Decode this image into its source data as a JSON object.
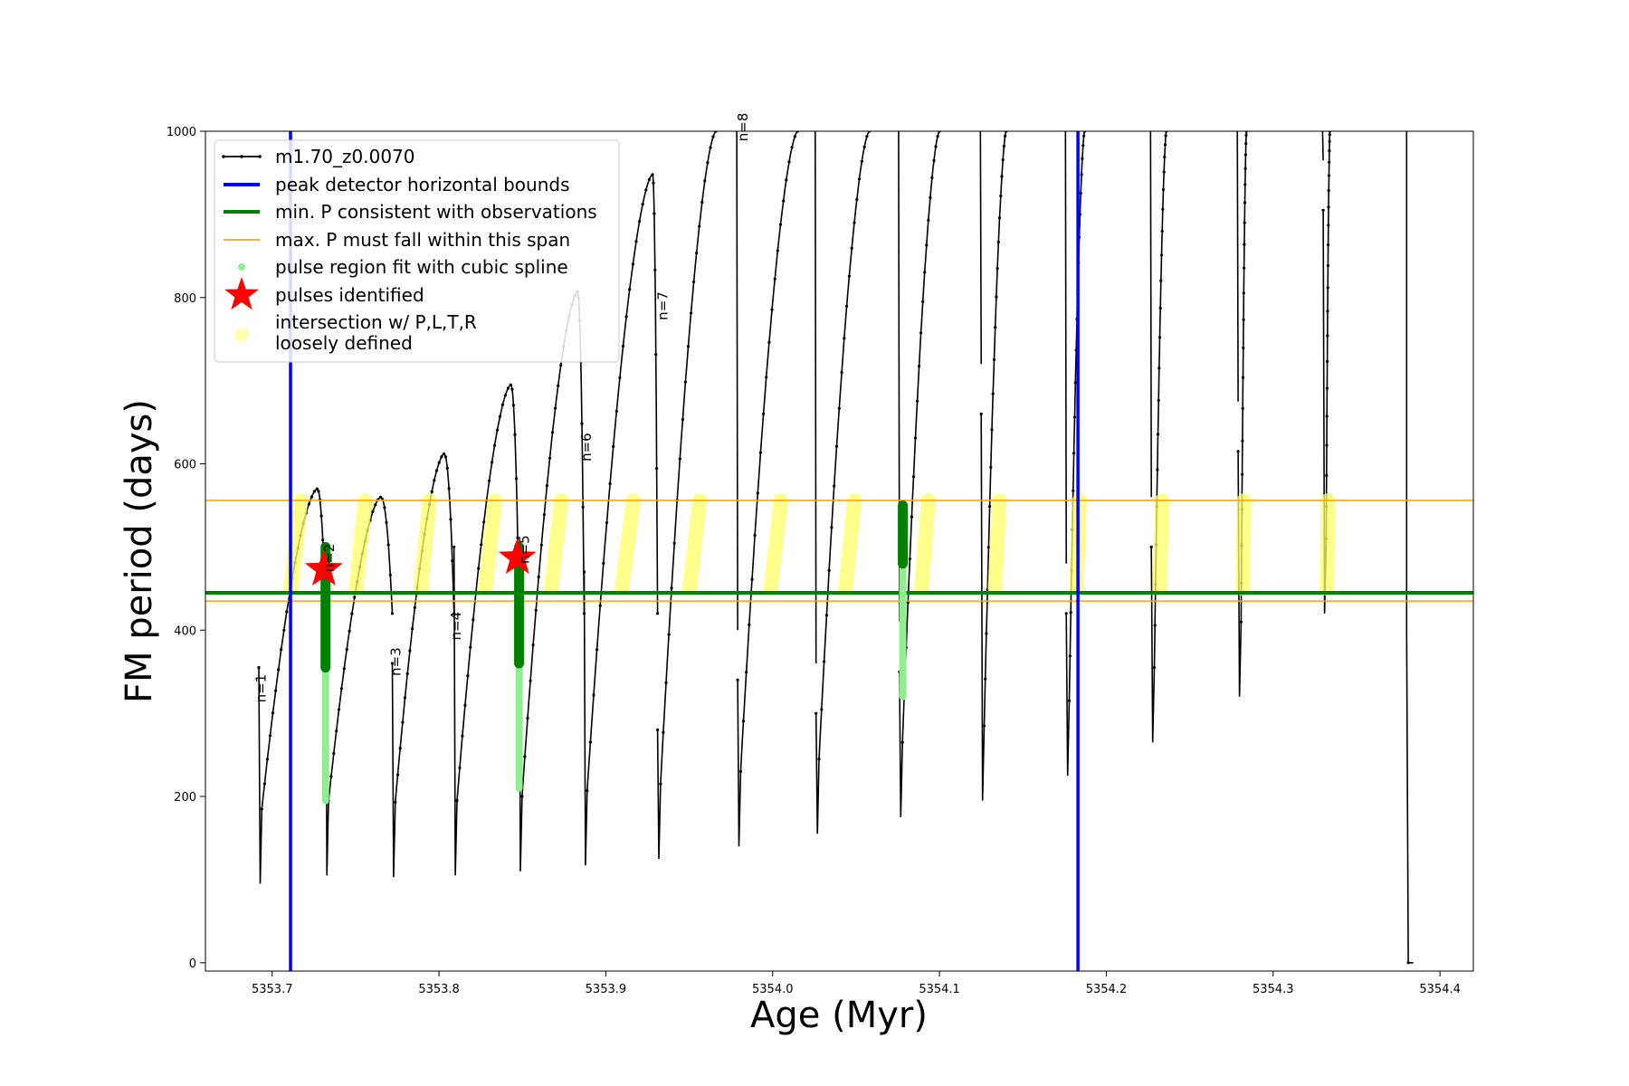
{
  "chart_data": {
    "type": "line",
    "xlabel": "Age (Myr)",
    "ylabel": "FM period (days)",
    "xlim": [
      5353.66,
      5354.42
    ],
    "ylim": [
      -10,
      1000
    ],
    "x_ticks": [
      5353.7,
      5353.8,
      5353.9,
      5354.0,
      5354.1,
      5354.2,
      5354.3,
      5354.4
    ],
    "x_tick_labels": [
      "5353.7",
      "5353.8",
      "5353.9",
      "5354.0",
      "5354.1",
      "5354.2",
      "5354.3",
      "5354.4"
    ],
    "y_ticks": [
      0,
      200,
      400,
      600,
      800,
      1000
    ],
    "y_tick_labels": [
      "0",
      "200",
      "400",
      "600",
      "800",
      "1000"
    ],
    "grid": false,
    "legend_position": "top-left",
    "legend": [
      {
        "label": "m1.70_z0.0070",
        "kind": "line-marker",
        "color": "#000000"
      },
      {
        "label": "peak detector horizontal bounds",
        "kind": "line",
        "color": "#0000ff"
      },
      {
        "label": "min. P consistent with observations",
        "kind": "line",
        "color": "#008000"
      },
      {
        "label": "max. P must fall within this span",
        "kind": "line-thin",
        "color": "#ffa500"
      },
      {
        "label": "pulse region fit with cubic spline",
        "kind": "dot",
        "color": "#90ee90"
      },
      {
        "label": "pulses identified",
        "kind": "star",
        "color": "#ff0000"
      },
      {
        "label": "intersection w/ P,L,T,R",
        "label2": "loosely defined",
        "kind": "big-dot",
        "color": "#ffff80"
      }
    ],
    "vertical_lines": [
      5353.711,
      5354.183
    ],
    "min_p": 445,
    "max_p_span": [
      435,
      556
    ],
    "pulses": [
      {
        "label": "n=1",
        "x": 5353.696,
        "y": 330,
        "start_x": 5353.692,
        "base_y": 95,
        "spike_y": 355,
        "peak_x": 5353.727,
        "peak_y": 570
      },
      {
        "label": "n=2",
        "x": 5353.737,
        "y": 487,
        "start_x": 5353.732,
        "base_y": 105,
        "spike_y": 500,
        "peak_x": 5353.765,
        "peak_y": 560
      },
      {
        "label": "n=3",
        "x": 5353.777,
        "y": 362,
        "start_x": 5353.772,
        "base_y": 103,
        "spike_y": 360,
        "peak_x": 5353.803,
        "peak_y": 612
      },
      {
        "label": "n=4",
        "x": 5353.813,
        "y": 405,
        "start_x": 5353.809,
        "base_y": 105,
        "spike_y": 500,
        "peak_x": 5353.843,
        "peak_y": 695
      },
      {
        "label": "n=5",
        "x": 5353.854,
        "y": 497,
        "start_x": 5353.848,
        "base_y": 110,
        "spike_y": 500,
        "peak_x": 5353.883,
        "peak_y": 807
      },
      {
        "label": "n=6",
        "x": 5353.891,
        "y": 620,
        "start_x": 5353.887,
        "base_y": 117,
        "spike_y": 470,
        "peak_x": 5353.928,
        "peak_y": 948
      },
      {
        "label": "n=7",
        "x": 5353.937,
        "y": 790,
        "start_x": 5353.931,
        "base_y": 125,
        "spike_y": 280,
        "peak_x": 5353.966,
        "peak_y": 1000
      },
      {
        "label": "n=8",
        "x": 5353.985,
        "y": 1005,
        "start_x": 5353.979,
        "base_y": 140,
        "spike_y": 340,
        "peak_x": 5354.015,
        "peak_y": 1000
      },
      {
        "label": "",
        "x": 0,
        "y": 0,
        "start_x": 5354.026,
        "base_y": 155,
        "spike_y": 300,
        "peak_x": 5354.058,
        "peak_y": 1000
      },
      {
        "label": "",
        "x": 0,
        "y": 0,
        "start_x": 5354.076,
        "base_y": 175,
        "spike_y": 350,
        "peak_x": 5354.1,
        "peak_y": 1000
      },
      {
        "label": "",
        "x": 0,
        "y": 0,
        "start_x": 5354.125,
        "base_y": 195,
        "spike_y": 660,
        "peak_x": 5354.14,
        "peak_y": 1000
      },
      {
        "label": "",
        "x": 0,
        "y": 0,
        "start_x": 5354.176,
        "base_y": 225,
        "spike_y": 420,
        "peak_x": 5354.187,
        "peak_y": 1000
      },
      {
        "label": "",
        "x": 0,
        "y": 0,
        "start_x": 5354.227,
        "base_y": 265,
        "spike_y": 500,
        "peak_x": 5354.236,
        "peak_y": 1000
      },
      {
        "label": "",
        "x": 0,
        "y": 0,
        "start_x": 5354.279,
        "base_y": 320,
        "spike_y": 615,
        "peak_x": 5354.284,
        "peak_y": 1000
      },
      {
        "label": "",
        "x": 0,
        "y": 0,
        "start_x": 5354.33,
        "base_y": 420,
        "spike_y": 905,
        "peak_x": 5354.334,
        "peak_y": 1000
      }
    ],
    "final_drop": {
      "x": 5354.38,
      "top_y": 1000,
      "mid_y": 400,
      "bottom_y": 0,
      "end_x": 5354.384
    },
    "spline_regions": [
      {
        "x": 5353.732,
        "y_top": 500,
        "y_bottom": 195,
        "dark_y_bottom": 355
      },
      {
        "x": 5353.848,
        "y_top": 500,
        "y_bottom": 210,
        "dark_y_bottom": 360
      },
      {
        "x": 5354.078,
        "y_top": 550,
        "y_bottom": 320,
        "dark_y_bottom": 480
      }
    ],
    "stars": [
      {
        "x": 5353.731,
        "y": 473
      },
      {
        "x": 5353.847,
        "y": 487
      }
    ]
  }
}
